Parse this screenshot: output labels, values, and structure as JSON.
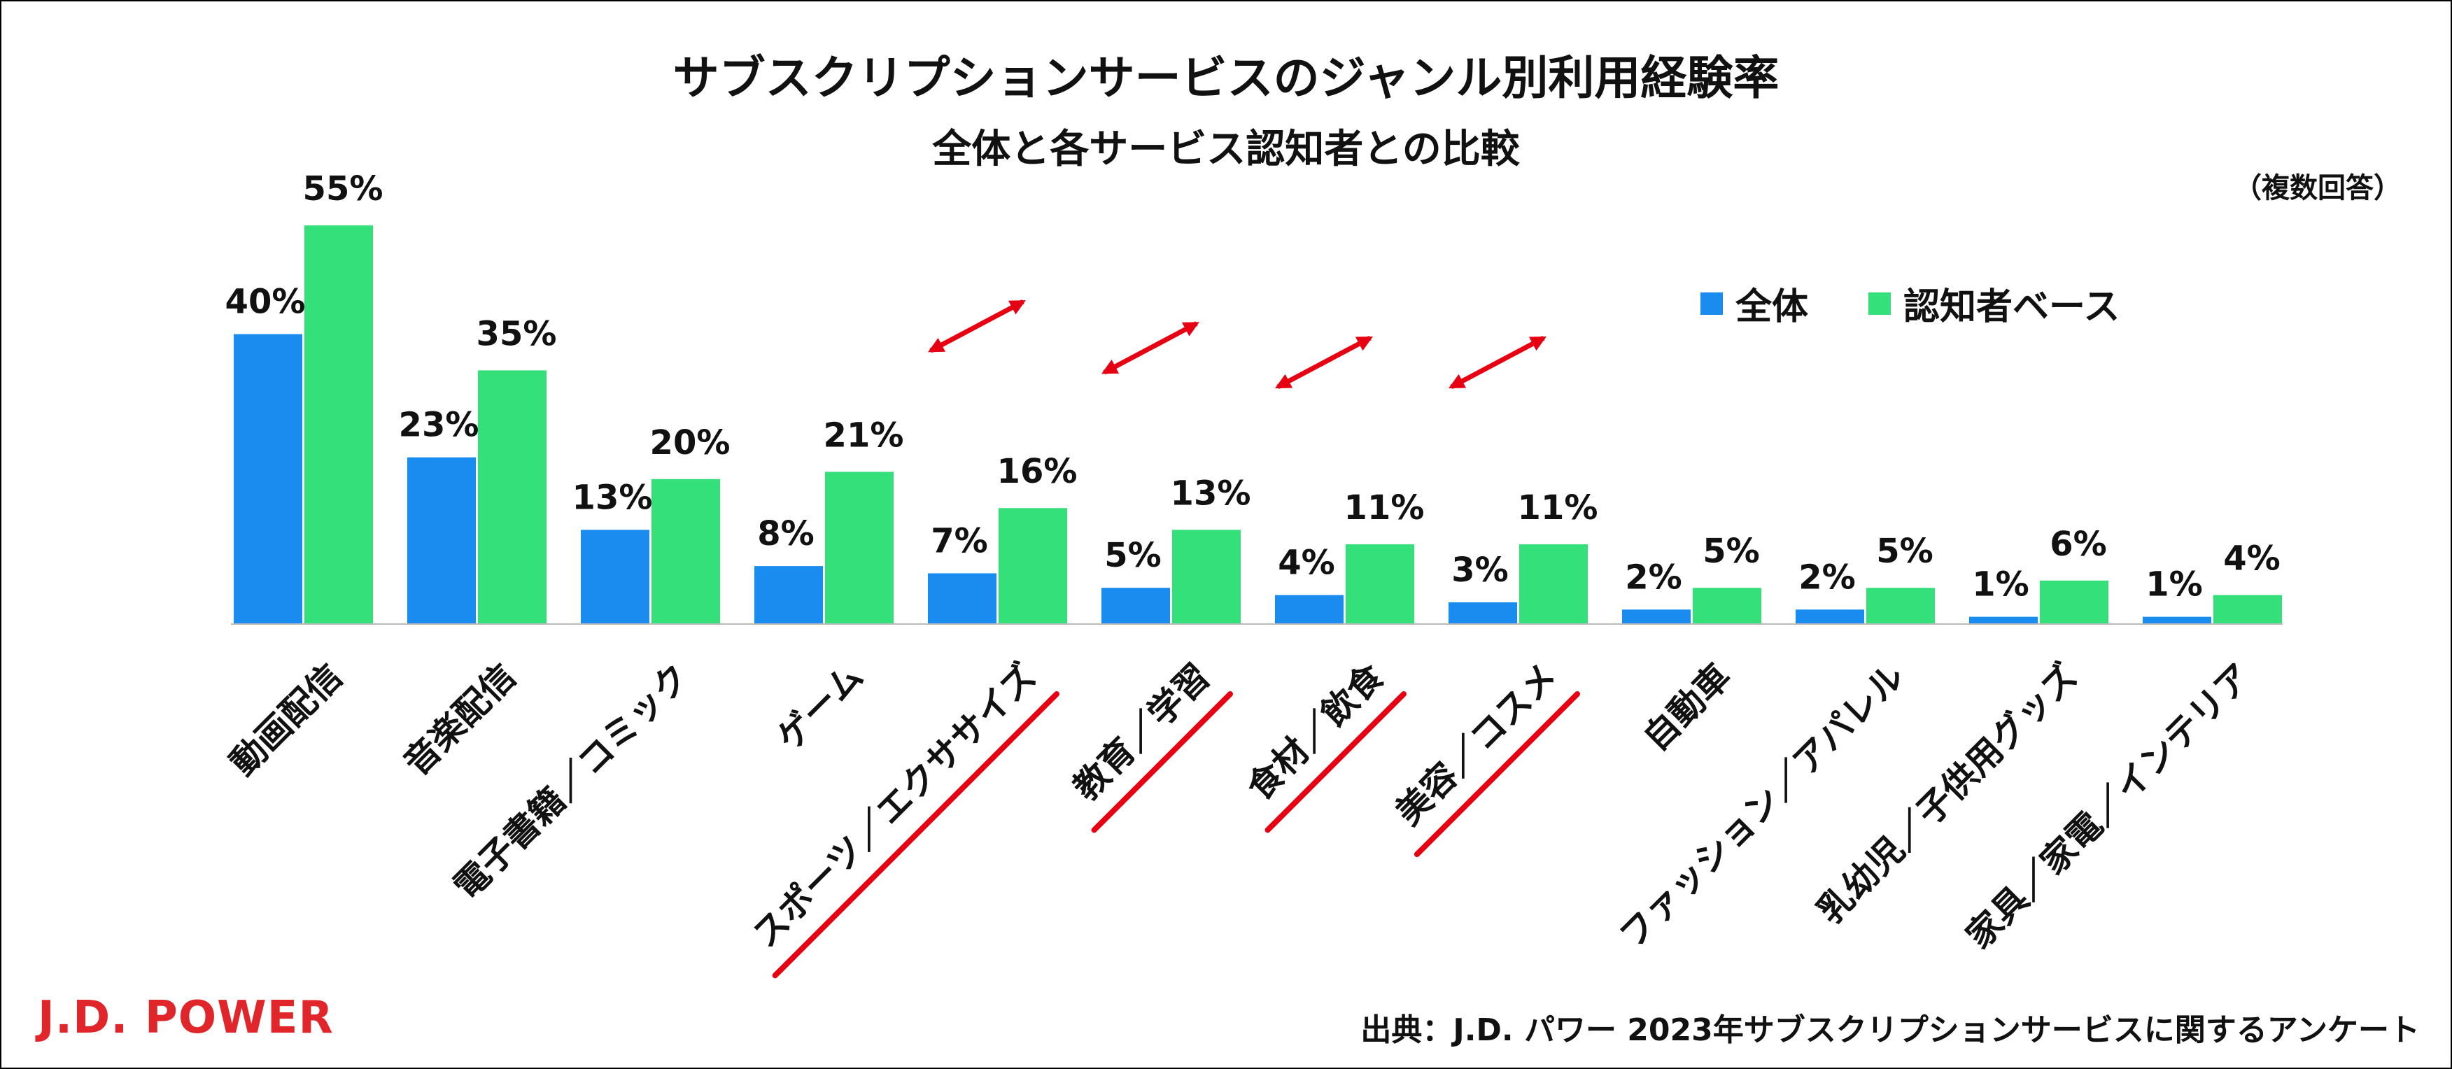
{
  "title": "サブスクリプションサービスのジャンル別利用経験率",
  "subtitle": "全体と各サービス認知者との比較",
  "note": "（複数回答）",
  "source": "出典：J.D. パワー 2023年サブスクリプションサービスに関するアンケート",
  "logo": "J.D. POWER",
  "colors": {
    "overall": "#1a8cf0",
    "aware": "#33e07a",
    "arrow": "#e60012"
  },
  "chart_data": {
    "type": "bar",
    "title": "サブスクリプションサービスのジャンル別利用経験率",
    "subtitle": "全体と各サービス認知者との比較",
    "categories": [
      "動画配信",
      "音楽配信",
      "電子書籍／コミック",
      "ゲーム",
      "スポーツ／エクササイズ",
      "教育／学習",
      "食材／飲食",
      "美容／コスメ",
      "自動車",
      "ファッション／アパレル",
      "乳幼児／子供用グッズ",
      "家具／家電／インテリア"
    ],
    "series": [
      {
        "name": "全体",
        "values": [
          40,
          23,
          13,
          8,
          7,
          5,
          4,
          3,
          2,
          2,
          1,
          1
        ],
        "labels": [
          "40%",
          "23%",
          "13%",
          "8%",
          "7%",
          "5%",
          "4%",
          "3%",
          "2%",
          "2%",
          "1%",
          "1%"
        ]
      },
      {
        "name": "認知者ベース",
        "values": [
          55,
          35,
          20,
          21,
          16,
          13,
          11,
          11,
          5,
          5,
          6,
          4
        ],
        "labels": [
          "55%",
          "35%",
          "20%",
          "21%",
          "16%",
          "13%",
          "11%",
          "11%",
          "5%",
          "5%",
          "6%",
          "4%"
        ]
      }
    ],
    "highlighted_categories": [
      "スポーツ／エクササイズ",
      "教育／学習",
      "食材／飲食",
      "美容／コスメ"
    ],
    "ylim": [
      0,
      60
    ],
    "legend": "top-right",
    "grid": false
  }
}
